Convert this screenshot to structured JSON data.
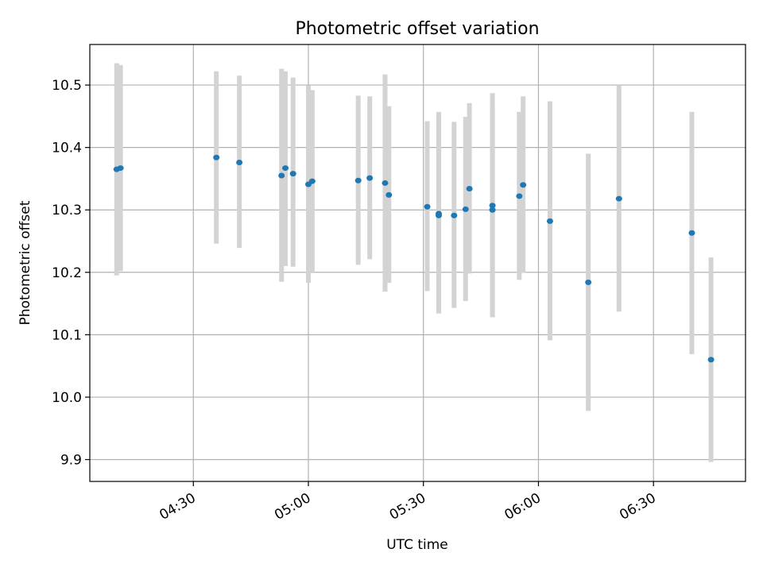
{
  "chart_data": {
    "type": "scatter",
    "title": "Photometric offset variation",
    "xlabel": "UTC time",
    "ylabel": "Photometric offset",
    "x_unit": "UTC time (HH:MM)",
    "xlim": [
      "04:03",
      "06:54"
    ],
    "ylim": [
      9.865,
      10.565
    ],
    "x_ticks": [
      "04:30",
      "05:00",
      "05:30",
      "06:00",
      "06:30"
    ],
    "y_ticks": [
      "9.9",
      "10.0",
      "10.1",
      "10.2",
      "10.3",
      "10.4",
      "10.5"
    ],
    "grid": true,
    "marker_color": "#1f77b4",
    "errorbar_color": "#d3d3d3",
    "points": [
      {
        "t": "04:10",
        "y": 10.365,
        "err_low": 10.195,
        "err_high": 10.535
      },
      {
        "t": "04:11",
        "y": 10.367,
        "err_low": 10.202,
        "err_high": 10.532
      },
      {
        "t": "04:36",
        "y": 10.384,
        "err_low": 10.246,
        "err_high": 10.522
      },
      {
        "t": "04:42",
        "y": 10.376,
        "err_low": 10.239,
        "err_high": 10.515
      },
      {
        "t": "04:53",
        "y": 10.355,
        "err_low": 10.185,
        "err_high": 10.526
      },
      {
        "t": "04:54",
        "y": 10.367,
        "err_low": 10.21,
        "err_high": 10.522
      },
      {
        "t": "04:56",
        "y": 10.358,
        "err_low": 10.209,
        "err_high": 10.512
      },
      {
        "t": "05:00",
        "y": 10.341,
        "err_low": 10.183,
        "err_high": 10.499
      },
      {
        "t": "05:01",
        "y": 10.346,
        "err_low": 10.2,
        "err_high": 10.492
      },
      {
        "t": "05:13",
        "y": 10.347,
        "err_low": 10.212,
        "err_high": 10.483
      },
      {
        "t": "05:16",
        "y": 10.351,
        "err_low": 10.221,
        "err_high": 10.482
      },
      {
        "t": "05:20",
        "y": 10.343,
        "err_low": 10.169,
        "err_high": 10.517
      },
      {
        "t": "05:21",
        "y": 10.324,
        "err_low": 10.183,
        "err_high": 10.466
      },
      {
        "t": "05:31",
        "y": 10.305,
        "err_low": 10.17,
        "err_high": 10.442
      },
      {
        "t": "05:34",
        "y": 10.294,
        "err_low": 10.134,
        "err_high": 10.457
      },
      {
        "t": "05:34",
        "y": 10.291,
        "err_low": 10.137,
        "err_high": 10.449
      },
      {
        "t": "05:38",
        "y": 10.291,
        "err_low": 10.143,
        "err_high": 10.441
      },
      {
        "t": "05:41",
        "y": 10.301,
        "err_low": 10.154,
        "err_high": 10.449
      },
      {
        "t": "05:42",
        "y": 10.334,
        "err_low": 10.198,
        "err_high": 10.471
      },
      {
        "t": "05:48",
        "y": 10.3,
        "err_low": 10.135,
        "err_high": 10.466
      },
      {
        "t": "05:48",
        "y": 10.307,
        "err_low": 10.128,
        "err_high": 10.487
      },
      {
        "t": "05:55",
        "y": 10.322,
        "err_low": 10.188,
        "err_high": 10.457
      },
      {
        "t": "05:56",
        "y": 10.34,
        "err_low": 10.199,
        "err_high": 10.482
      },
      {
        "t": "06:03",
        "y": 10.282,
        "err_low": 10.091,
        "err_high": 10.474
      },
      {
        "t": "06:13",
        "y": 10.184,
        "err_low": 9.978,
        "err_high": 10.39
      },
      {
        "t": "06:21",
        "y": 10.318,
        "err_low": 10.137,
        "err_high": 10.499
      },
      {
        "t": "06:40",
        "y": 10.263,
        "err_low": 10.069,
        "err_high": 10.457
      },
      {
        "t": "06:45",
        "y": 10.06,
        "err_low": 9.896,
        "err_high": 10.224
      }
    ]
  }
}
